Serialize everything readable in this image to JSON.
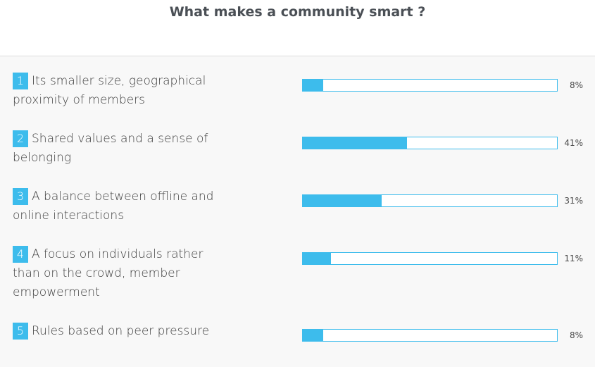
{
  "title": "What makes a community smart ?",
  "chart_data": {
    "type": "bar",
    "title": "What makes a community smart ?",
    "categories": [
      "Its smaller size, geographical proximity of members",
      "Shared values and a sense of belonging",
      "A balance between offline and online interactions",
      "A focus on individuals rather than on the crowd, member empowerment",
      "Rules based on peer pressure"
    ],
    "values": [
      8,
      41,
      31,
      11,
      8
    ],
    "ylim": [
      0,
      100
    ],
    "value_unit": "%",
    "orientation": "horizontal",
    "bar_color": "#3dbcec"
  },
  "rows": [
    {
      "number": "1",
      "label": "Its smaller size, geographical proximity of members",
      "percent_label": "8%"
    },
    {
      "number": "2",
      "label": "Shared values and a sense of belonging",
      "percent_label": "41%"
    },
    {
      "number": "3",
      "label": "A balance between offline and online interactions",
      "percent_label": "31%"
    },
    {
      "number": "4",
      "label": "A focus on individuals rather than on the crowd, member empowerment",
      "percent_label": "11%"
    },
    {
      "number": "5",
      "label": "Rules based on peer pressure",
      "percent_label": "8%"
    }
  ]
}
